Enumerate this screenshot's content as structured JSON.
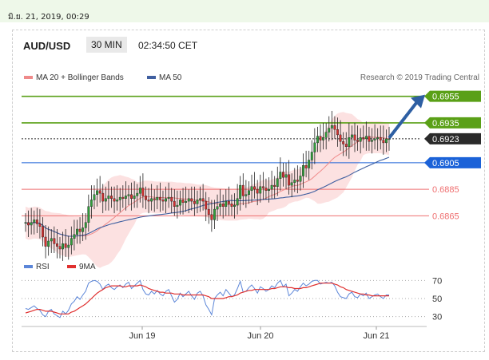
{
  "header": {
    "date": "มิ.ย. 21, 2019, 00:29",
    "pair": "AUD/USD",
    "timeframe": "30 MIN",
    "time": "02:34:50 CET",
    "credit": "Research © 2019 Trading Central"
  },
  "colors": {
    "green": "#5aa017",
    "blue": "#1b62d8",
    "red": "#ef6f70",
    "current": "#2a2a2a",
    "ma50": "#3f5fa0",
    "bands": "#fcdcdc",
    "rsi": "#5c86d8",
    "rsi_ma": "#e0302f",
    "arrow": "#2e5fa3"
  },
  "chart_data": [
    {
      "type": "candlestick",
      "title": "AUD/USD",
      "legend": [
        {
          "name": "MA 20 + Bollinger Bands",
          "color": "#ef8a8a"
        },
        {
          "name": "MA 50",
          "color": "#3f5fa0"
        }
      ],
      "ylim": [
        0.684,
        0.6965
      ],
      "x_ticks": [
        "Jun 19",
        "Jun 20",
        "Jun 21"
      ],
      "levels": [
        {
          "value": 0.6955,
          "label": "0.6955",
          "kind": "resistance",
          "style": "solid",
          "color": "#5aa017"
        },
        {
          "value": 0.6935,
          "label": "0.6935",
          "kind": "resistance",
          "style": "solid",
          "color": "#5aa017"
        },
        {
          "value": 0.6923,
          "label": "0.6923",
          "kind": "current",
          "style": "dotted",
          "color": "#2a2a2a"
        },
        {
          "value": 0.6905,
          "label": "0.6905",
          "kind": "pivot",
          "style": "solid",
          "color": "#1b62d8"
        },
        {
          "value": 0.6885,
          "label": "0.6885",
          "kind": "support",
          "style": "solid",
          "color": "#ef6f70"
        },
        {
          "value": 0.6865,
          "label": "0.6865",
          "kind": "support",
          "style": "solid",
          "color": "#ef6f70"
        }
      ],
      "close": [
        0.686,
        0.6858,
        0.686,
        0.6862,
        0.6859,
        0.6857,
        0.6849,
        0.6842,
        0.6846,
        0.6848,
        0.6844,
        0.6842,
        0.684,
        0.6844,
        0.6841,
        0.6843,
        0.6848,
        0.6851,
        0.6855,
        0.6853,
        0.6856,
        0.686,
        0.6872,
        0.6877,
        0.6881,
        0.6884,
        0.6882,
        0.6876,
        0.6878,
        0.688,
        0.6878,
        0.6876,
        0.6877,
        0.6879,
        0.6878,
        0.688,
        0.6881,
        0.6878,
        0.688,
        0.6882,
        0.6886,
        0.688,
        0.6877,
        0.6876,
        0.6878,
        0.6877,
        0.6879,
        0.6877,
        0.6876,
        0.6878,
        0.6879,
        0.6876,
        0.6872,
        0.6873,
        0.6877,
        0.6875,
        0.6876,
        0.6878,
        0.6876,
        0.6874,
        0.6877,
        0.6878,
        0.6876,
        0.687,
        0.6866,
        0.6862,
        0.687,
        0.6872,
        0.6874,
        0.6872,
        0.6876,
        0.6874,
        0.6872,
        0.6873,
        0.6878,
        0.6888,
        0.688,
        0.6881,
        0.6884,
        0.6887,
        0.6885,
        0.6882,
        0.6887,
        0.6886,
        0.6884,
        0.6885,
        0.6888,
        0.6887,
        0.6893,
        0.6898,
        0.6894,
        0.6896,
        0.6888,
        0.689,
        0.6892,
        0.6891,
        0.6895,
        0.6903,
        0.6901,
        0.6907,
        0.6913,
        0.692,
        0.6925,
        0.6922,
        0.6924,
        0.6928,
        0.6931,
        0.6933,
        0.693,
        0.6926,
        0.6921,
        0.6919,
        0.6917,
        0.6924,
        0.6926,
        0.6922,
        0.6921,
        0.6924,
        0.6923,
        0.6925,
        0.6921,
        0.6922,
        0.6923,
        0.6924,
        0.6922,
        0.692,
        0.6923,
        0.6923
      ],
      "annotation": "forecast arrow from 0.6923 toward 0.6955"
    },
    {
      "type": "line",
      "legend": [
        {
          "name": "RSI",
          "color": "#5c86d8"
        },
        {
          "name": "9MA",
          "color": "#e0302f"
        }
      ],
      "ylim": [
        20,
        80
      ],
      "y_ticks": [
        70,
        50,
        30
      ],
      "series": [
        {
          "name": "RSI",
          "values": [
            39,
            38,
            40,
            42,
            39,
            37,
            32,
            30,
            36,
            38,
            33,
            31,
            29,
            36,
            33,
            37,
            44,
            47,
            52,
            49,
            54,
            58,
            67,
            69,
            70,
            69,
            66,
            60,
            64,
            66,
            62,
            60,
            63,
            65,
            62,
            66,
            68,
            61,
            64,
            67,
            70,
            60,
            55,
            54,
            58,
            55,
            59,
            55,
            53,
            58,
            60,
            53,
            46,
            49,
            56,
            52,
            55,
            58,
            53,
            49,
            56,
            58,
            53,
            43,
            38,
            32,
            50,
            54,
            57,
            53,
            60,
            56,
            52,
            54,
            61,
            69,
            57,
            58,
            62,
            65,
            61,
            56,
            63,
            61,
            58,
            60,
            64,
            62,
            67,
            70,
            63,
            66,
            53,
            56,
            60,
            58,
            63,
            67,
            64,
            66,
            69,
            70,
            70,
            66,
            67,
            68,
            67,
            68,
            64,
            57,
            52,
            51,
            50,
            55,
            57,
            52,
            51,
            55,
            53,
            56,
            50,
            52,
            54,
            55,
            52,
            50,
            54,
            54
          ]
        },
        {
          "name": "9MA",
          "values": [
            34,
            35,
            36,
            37,
            38,
            38,
            37,
            36,
            36,
            36,
            35,
            34,
            33,
            33,
            33,
            33,
            35,
            36,
            38,
            40,
            42,
            44,
            47,
            50,
            53,
            56,
            58,
            60,
            62,
            63,
            64,
            64,
            64,
            64,
            63,
            63,
            64,
            64,
            64,
            64,
            65,
            64,
            63,
            61,
            60,
            59,
            58,
            57,
            57,
            56,
            56,
            56,
            55,
            55,
            55,
            54,
            54,
            54,
            54,
            54,
            54,
            54,
            54,
            53,
            52,
            50,
            50,
            50,
            50,
            50,
            51,
            52,
            52,
            53,
            54,
            56,
            57,
            58,
            59,
            59,
            60,
            60,
            60,
            60,
            60,
            60,
            61,
            61,
            62,
            63,
            63,
            63,
            62,
            62,
            61,
            61,
            61,
            62,
            62,
            63,
            64,
            65,
            66,
            67,
            67,
            67,
            67,
            67,
            66,
            65,
            63,
            62,
            60,
            59,
            58,
            57,
            56,
            55,
            55,
            54,
            54,
            53,
            53,
            53,
            53,
            53,
            53,
            53
          ]
        }
      ]
    }
  ]
}
